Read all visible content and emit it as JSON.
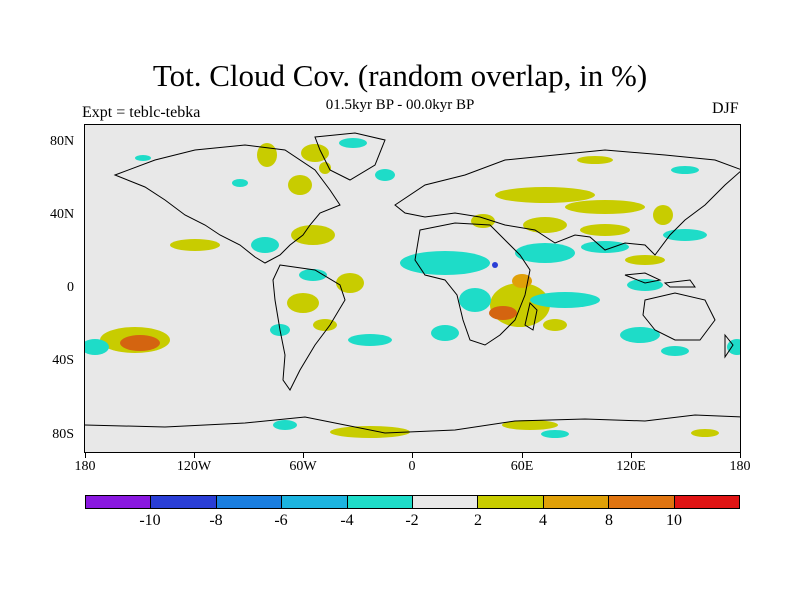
{
  "title": "Tot. Cloud Cov. (random overlap, in %)",
  "subtitle": "01.5kyr BP - 00.0kyr BP",
  "experiment_label": "Expt = teblc-tebka",
  "season_label": "DJF",
  "y_axis_labels": [
    "80N",
    "40N",
    "0",
    "40S",
    "80S"
  ],
  "x_axis_labels": [
    "180",
    "120W",
    "60W",
    "0",
    "60E",
    "120E",
    "180"
  ],
  "colorbar": {
    "colors": [
      "#8a18e0",
      "#2a3ed6",
      "#1a7ee0",
      "#1cb4e0",
      "#1edcc8",
      "#e8e8e8",
      "#c8cc00",
      "#e0a008",
      "#e07410",
      "#d44c12",
      "#e01414"
    ],
    "labels": [
      "-10",
      "-8",
      "-6",
      "-4",
      "-2",
      "2",
      "4",
      "8",
      "10"
    ]
  },
  "colors": {
    "land_background": "#e8e8e8",
    "positive_small": "#c8cc00",
    "positive_medium": "#e0a008",
    "positive_large": "#d46410",
    "negative_small": "#1edcc8",
    "negative_medium": "#1cb4e0",
    "negative_large": "#2a3ed6"
  }
}
